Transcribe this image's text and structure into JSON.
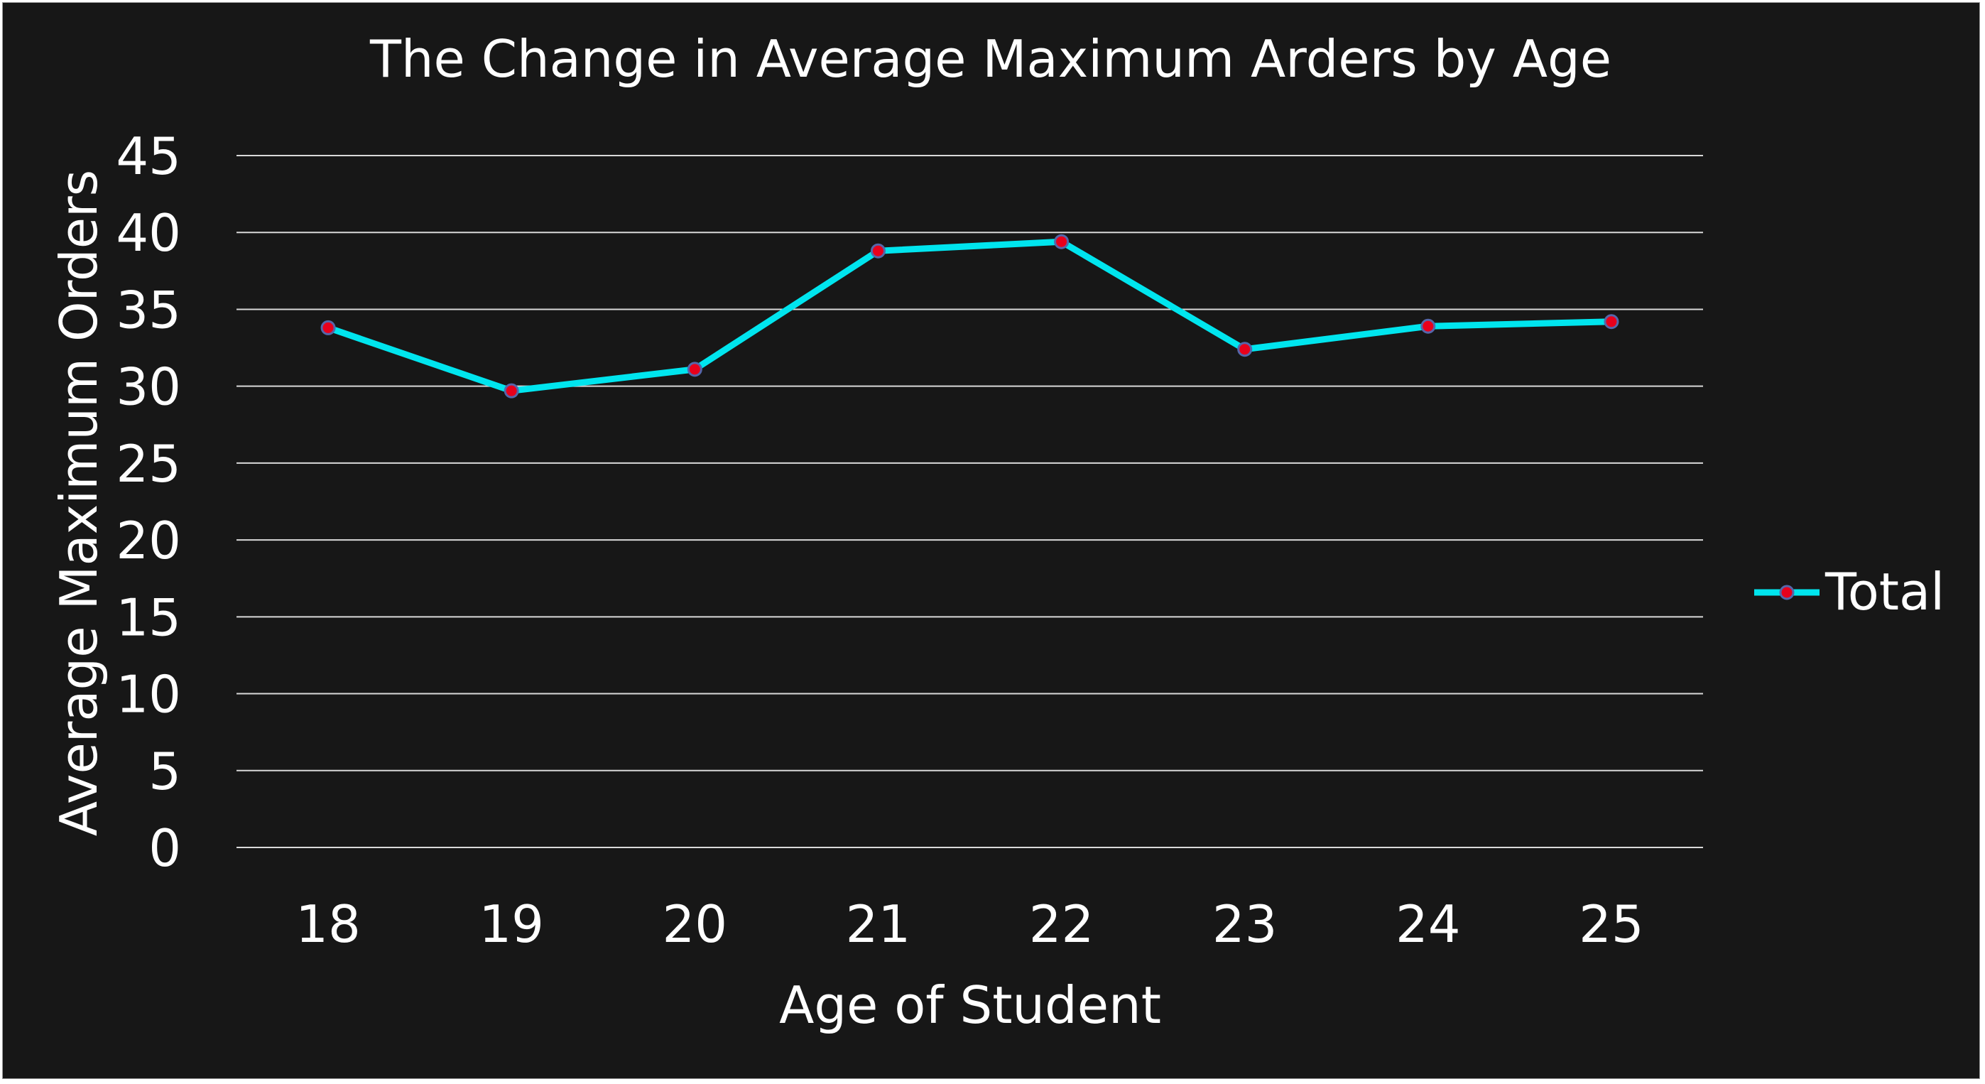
{
  "chart_data": {
    "type": "line",
    "title": "The Change in Average Maximum Arders by Age",
    "xlabel": "Age of Student",
    "ylabel": "Average Maximum Orders",
    "categories": [
      "18",
      "19",
      "20",
      "21",
      "22",
      "23",
      "24",
      "25"
    ],
    "series": [
      {
        "name": "Total",
        "values": [
          33.8,
          29.7,
          31.1,
          38.8,
          39.4,
          32.4,
          33.9,
          34.2
        ]
      }
    ],
    "yticks": [
      "0",
      "5",
      "10",
      "15",
      "20",
      "25",
      "30",
      "35",
      "40",
      "45"
    ],
    "ylim": [
      0,
      45
    ],
    "grid": true,
    "legend": "right",
    "colors": {
      "background": "#171717",
      "line": "#00e5ee",
      "marker_fill": "#e8001c",
      "marker_edge": "#5566aa",
      "grid": "#d9d9d9",
      "text": "#ffffff"
    }
  }
}
